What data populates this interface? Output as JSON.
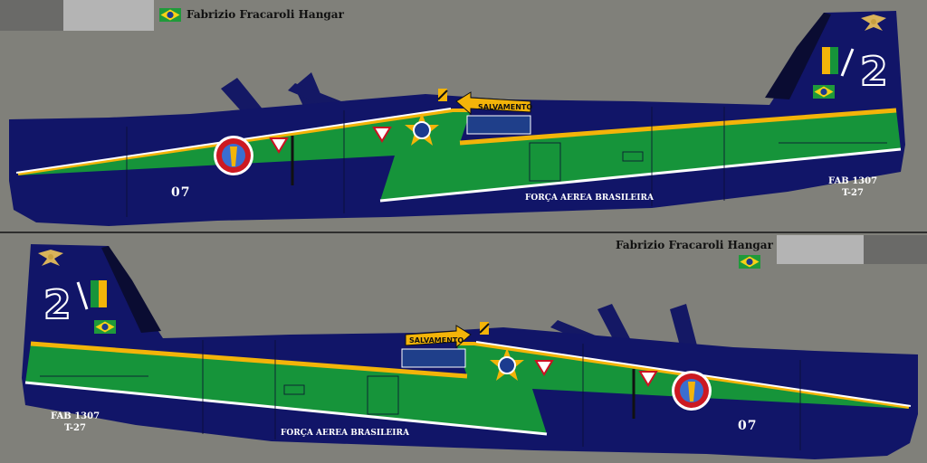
{
  "credit": "Fabrizio Fracaroli Hangar",
  "markings": {
    "tail_number": "2",
    "registration": "FAB 1307",
    "model": "T-27",
    "side_number": "07",
    "service": "FORÇA AEREA BRASILEIRA",
    "rescue_label": "SALVAMENTO"
  },
  "colors": {
    "fuselage": "#111568",
    "green_band": "#16943a",
    "yellow_trim": "#f3b409",
    "white_trim": "#ffffff",
    "background": "#80807a"
  },
  "icons": [
    "brazil-flag-icon",
    "air-force-eagle-icon",
    "roundel-star-icon",
    "squadron-badge-icon",
    "warning-triangle-icon",
    "rescue-arrow-icon"
  ]
}
